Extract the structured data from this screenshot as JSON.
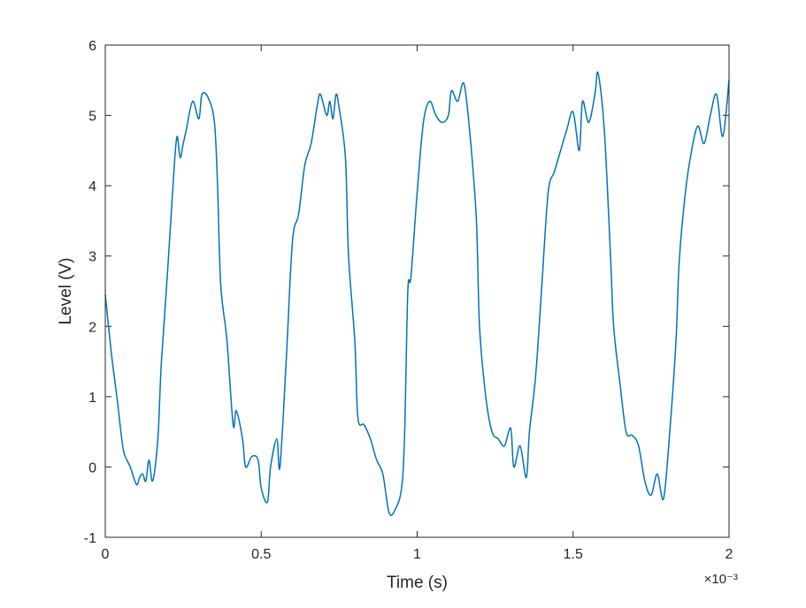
{
  "chart_data": {
    "type": "line",
    "title": "",
    "xlabel": "Time (s)",
    "ylabel": "Level (V)",
    "x_multiplier_label": "×10⁻³",
    "xlim": [
      0,
      0.002
    ],
    "ylim": [
      -1,
      6
    ],
    "x_ticks": [
      0,
      0.0005,
      0.001,
      0.0015,
      0.002
    ],
    "x_tick_labels": [
      "0",
      "0.5",
      "1",
      "1.5",
      "2"
    ],
    "y_ticks": [
      -1,
      0,
      1,
      2,
      3,
      4,
      5,
      6
    ],
    "y_tick_labels": [
      "-1",
      "0",
      "1",
      "2",
      "3",
      "4",
      "5",
      "6"
    ],
    "grid": false,
    "legend": "none",
    "series": [
      {
        "color": "#0072BD",
        "x": [
          0,
          2e-05,
          4e-05,
          5e-05,
          6e-05,
          8e-05,
          0.0001,
          0.00011,
          0.00012,
          0.00013,
          0.00014,
          0.00015,
          0.00016,
          0.00017,
          0.00018,
          0.0002,
          0.00022,
          0.00023,
          0.00024,
          0.00025,
          0.00026,
          0.00028,
          0.0003,
          0.00031,
          0.00033,
          0.00035,
          0.00036,
          0.00037,
          0.00039,
          0.00041,
          0.00042,
          0.00044,
          0.00045,
          0.00047,
          0.00049,
          0.0005,
          0.00052,
          0.00053,
          0.00055,
          0.00056,
          0.00058,
          0.0006,
          0.00062,
          0.00064,
          0.00066,
          0.00068,
          0.00069,
          0.00071,
          0.00072,
          0.00073,
          0.00074,
          0.00075,
          0.00077,
          0.00078,
          0.0008,
          0.00081,
          0.00083,
          0.00085,
          0.00087,
          0.00089,
          0.00091,
          0.00093,
          0.00095,
          0.00096,
          0.00097,
          0.00098,
          0.001,
          0.00102,
          0.00104,
          0.00106,
          0.00108,
          0.0011,
          0.00111,
          0.00113,
          0.00115,
          0.00117,
          0.00119,
          0.0012,
          0.00122,
          0.00124,
          0.00126,
          0.00128,
          0.0013,
          0.00131,
          0.00133,
          0.00135,
          0.00136,
          0.00138,
          0.0014,
          0.00142,
          0.00144,
          0.00146,
          0.00148,
          0.0015,
          0.00152,
          0.00153,
          0.00155,
          0.00157,
          0.00158,
          0.0016,
          0.00162,
          0.00163,
          0.00165,
          0.00167,
          0.00169,
          0.00171,
          0.00173,
          0.00175,
          0.00177,
          0.00179,
          0.00181,
          0.00183,
          0.00184,
          0.00186,
          0.00188,
          0.0019,
          0.00192,
          0.00194,
          0.00196,
          0.00198,
          0.002
        ],
        "y": [
          2.45,
          1.6,
          0.9,
          0.5,
          0.2,
          0.0,
          -0.25,
          -0.15,
          -0.1,
          -0.2,
          0.1,
          -0.2,
          0.0,
          0.5,
          1.5,
          2.8,
          4.2,
          4.7,
          4.4,
          4.6,
          4.8,
          5.2,
          4.95,
          5.3,
          5.25,
          4.9,
          4.0,
          2.6,
          1.8,
          0.6,
          0.8,
          0.4,
          0.0,
          0.15,
          0.1,
          -0.3,
          -0.5,
          0.0,
          0.4,
          0.0,
          1.5,
          3.2,
          3.6,
          4.3,
          4.6,
          5.15,
          5.3,
          5.0,
          5.2,
          4.95,
          5.3,
          5.1,
          4.4,
          3.0,
          1.8,
          0.7,
          0.6,
          0.4,
          0.1,
          -0.1,
          -0.65,
          -0.6,
          -0.3,
          0.5,
          2.5,
          2.7,
          3.9,
          4.9,
          5.2,
          5.0,
          4.9,
          5.0,
          5.35,
          5.2,
          5.45,
          4.7,
          3.5,
          2.0,
          1.0,
          0.5,
          0.4,
          0.3,
          0.55,
          0.0,
          0.3,
          -0.15,
          0.5,
          1.3,
          2.6,
          3.9,
          4.2,
          4.5,
          4.8,
          5.05,
          4.5,
          5.2,
          4.9,
          5.3,
          5.6,
          4.8,
          3.0,
          2.0,
          1.2,
          0.5,
          0.45,
          0.3,
          -0.2,
          -0.4,
          -0.1,
          -0.45,
          0.5,
          1.8,
          2.9,
          3.9,
          4.5,
          4.85,
          4.6,
          5.0,
          5.3,
          4.7,
          5.5
        ]
      }
    ]
  }
}
